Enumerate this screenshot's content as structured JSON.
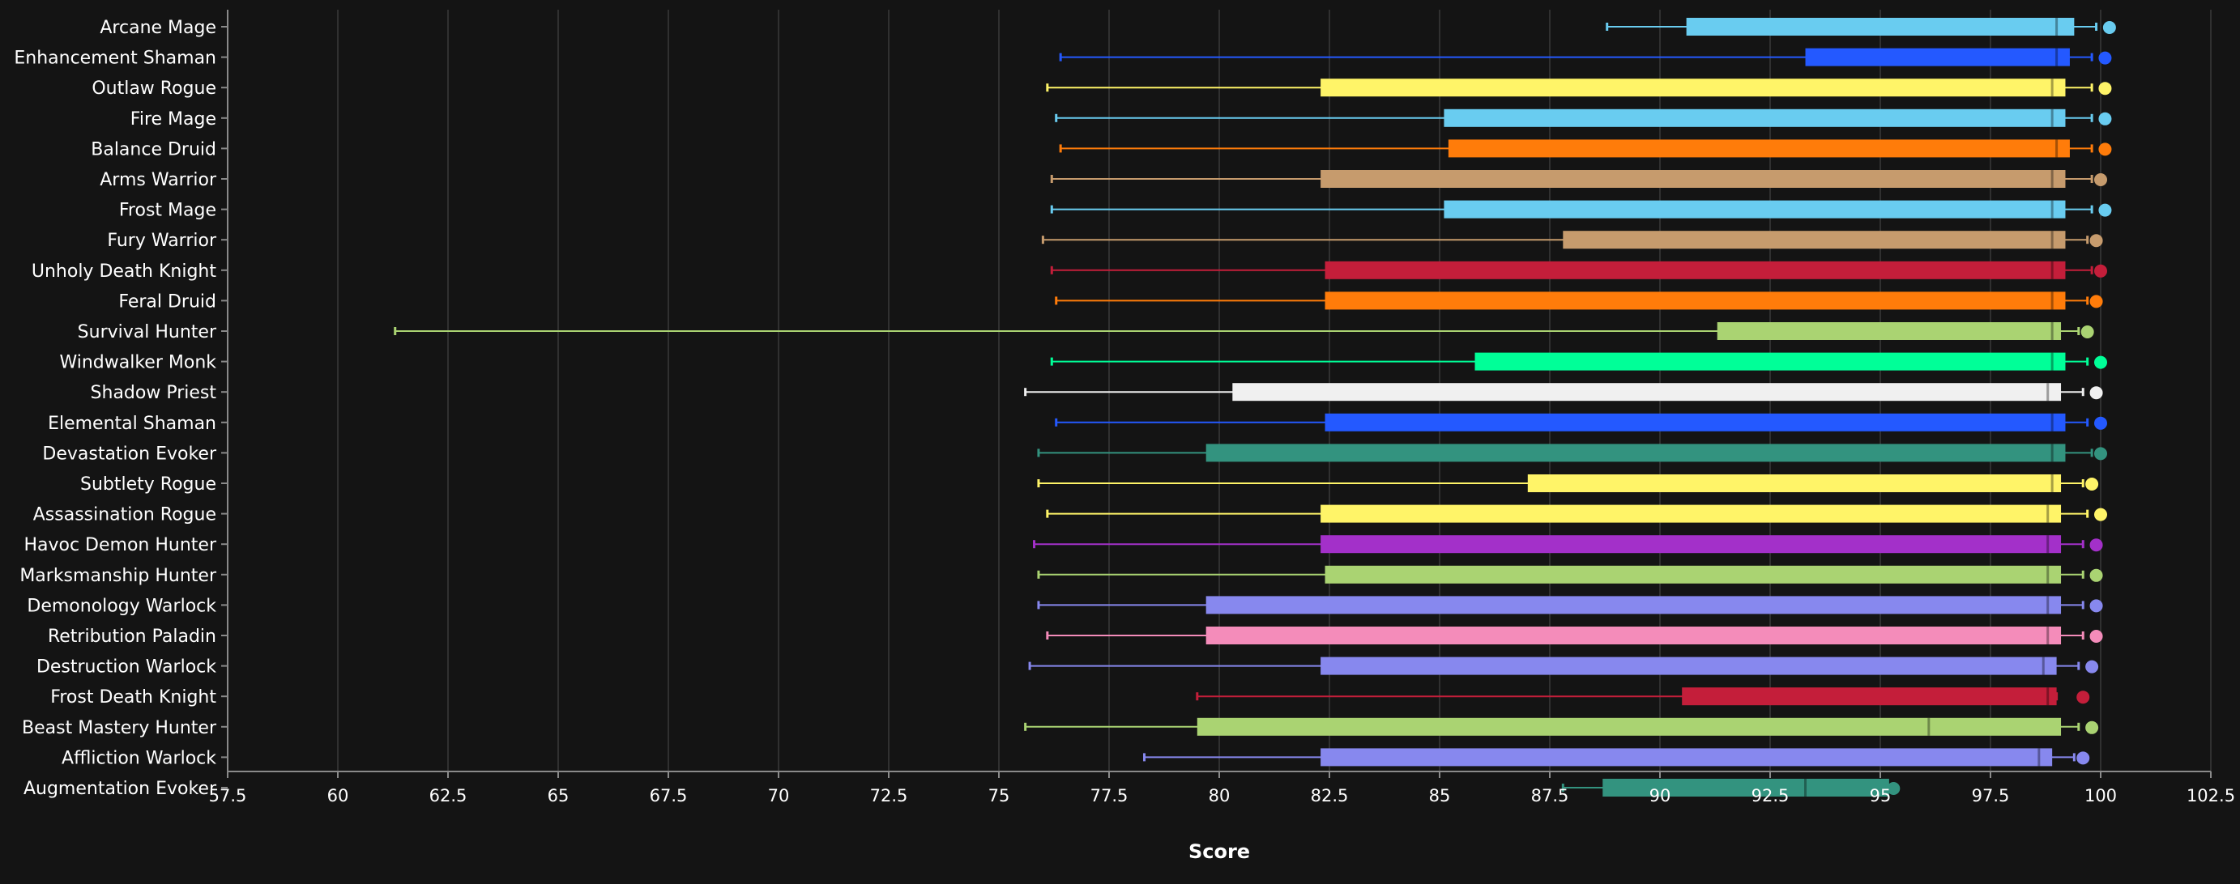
{
  "chart_data": {
    "type": "boxplot",
    "xlabel": "Score",
    "xlim": [
      57.5,
      102.5
    ],
    "xticks": [
      "57.5",
      "60",
      "62.5",
      "65",
      "67.5",
      "70",
      "72.5",
      "75",
      "77.5",
      "80",
      "82.5",
      "85",
      "87.5",
      "90",
      "92.5",
      "95",
      "97.5",
      "100",
      "102.5"
    ],
    "grid": true,
    "categories": [
      {
        "name": "Arcane Mage",
        "color": "#69CCF0",
        "min": 88.8,
        "q1": 90.6,
        "median": 99.0,
        "q3": 99.4,
        "max": 99.9,
        "outlier": 100.2
      },
      {
        "name": "Enhancement Shaman",
        "color": "#2459FF",
        "min": 76.4,
        "q1": 93.3,
        "median": 99.0,
        "q3": 99.3,
        "max": 99.8,
        "outlier": 100.1
      },
      {
        "name": "Outlaw Rogue",
        "color": "#FFF468",
        "min": 76.1,
        "q1": 82.3,
        "median": 98.9,
        "q3": 99.2,
        "max": 99.8,
        "outlier": 100.1
      },
      {
        "name": "Fire Mage",
        "color": "#69CCF0",
        "min": 76.3,
        "q1": 85.1,
        "median": 98.9,
        "q3": 99.2,
        "max": 99.8,
        "outlier": 100.1
      },
      {
        "name": "Balance Druid",
        "color": "#FF7C0A",
        "min": 76.4,
        "q1": 85.2,
        "median": 99.0,
        "q3": 99.3,
        "max": 99.8,
        "outlier": 100.1
      },
      {
        "name": "Arms Warrior",
        "color": "#C69B6D",
        "min": 76.2,
        "q1": 82.3,
        "median": 98.9,
        "q3": 99.2,
        "max": 99.8,
        "outlier": 100.0
      },
      {
        "name": "Frost Mage",
        "color": "#69CCF0",
        "min": 76.2,
        "q1": 85.1,
        "median": 98.9,
        "q3": 99.2,
        "max": 99.8,
        "outlier": 100.1
      },
      {
        "name": "Fury Warrior",
        "color": "#C69B6D",
        "min": 76.0,
        "q1": 87.8,
        "median": 98.9,
        "q3": 99.2,
        "max": 99.7,
        "outlier": 99.9
      },
      {
        "name": "Unholy Death Knight",
        "color": "#C41E3A",
        "min": 76.2,
        "q1": 82.4,
        "median": 98.9,
        "q3": 99.2,
        "max": 99.8,
        "outlier": 100.0
      },
      {
        "name": "Feral Druid",
        "color": "#FF7C0A",
        "min": 76.3,
        "q1": 82.4,
        "median": 98.9,
        "q3": 99.2,
        "max": 99.7,
        "outlier": 99.9
      },
      {
        "name": "Survival Hunter",
        "color": "#AAD372",
        "min": 61.3,
        "q1": 91.3,
        "median": 98.9,
        "q3": 99.1,
        "max": 99.5,
        "outlier": 99.7
      },
      {
        "name": "Windwalker Monk",
        "color": "#00FF98",
        "min": 76.2,
        "q1": 85.8,
        "median": 98.9,
        "q3": 99.2,
        "max": 99.7,
        "outlier": 100.0
      },
      {
        "name": "Shadow Priest",
        "color": "#F0F0F0",
        "min": 75.6,
        "q1": 80.3,
        "median": 98.8,
        "q3": 99.1,
        "max": 99.6,
        "outlier": 99.9
      },
      {
        "name": "Elemental Shaman",
        "color": "#2459FF",
        "min": 76.3,
        "q1": 82.4,
        "median": 98.9,
        "q3": 99.2,
        "max": 99.7,
        "outlier": 100.0
      },
      {
        "name": "Devastation Evoker",
        "color": "#33937F",
        "min": 75.9,
        "q1": 79.7,
        "median": 98.9,
        "q3": 99.2,
        "max": 99.8,
        "outlier": 100.0
      },
      {
        "name": "Subtlety Rogue",
        "color": "#FFF468",
        "min": 75.9,
        "q1": 87.0,
        "median": 98.9,
        "q3": 99.1,
        "max": 99.6,
        "outlier": 99.8
      },
      {
        "name": "Assassination Rogue",
        "color": "#FFF468",
        "min": 76.1,
        "q1": 82.3,
        "median": 98.8,
        "q3": 99.1,
        "max": 99.7,
        "outlier": 100.0
      },
      {
        "name": "Havoc Demon Hunter",
        "color": "#A330C9",
        "min": 75.8,
        "q1": 82.3,
        "median": 98.8,
        "q3": 99.1,
        "max": 99.6,
        "outlier": 99.9
      },
      {
        "name": "Marksmanship Hunter",
        "color": "#AAD372",
        "min": 75.9,
        "q1": 82.4,
        "median": 98.8,
        "q3": 99.1,
        "max": 99.6,
        "outlier": 99.9
      },
      {
        "name": "Demonology Warlock",
        "color": "#8788EE",
        "min": 75.9,
        "q1": 79.7,
        "median": 98.8,
        "q3": 99.1,
        "max": 99.6,
        "outlier": 99.9
      },
      {
        "name": "Retribution Paladin",
        "color": "#F48CBA",
        "min": 76.1,
        "q1": 79.7,
        "median": 98.8,
        "q3": 99.1,
        "max": 99.6,
        "outlier": 99.9
      },
      {
        "name": "Destruction Warlock",
        "color": "#8788EE",
        "min": 75.7,
        "q1": 82.3,
        "median": 98.7,
        "q3": 99.0,
        "max": 99.5,
        "outlier": 99.8
      },
      {
        "name": "Frost Death Knight",
        "color": "#C41E3A",
        "min": 79.5,
        "q1": 90.5,
        "median": 98.8,
        "q3": 99.0,
        "max": 99.0,
        "outlier": 99.6
      },
      {
        "name": "Beast Mastery Hunter",
        "color": "#AAD372",
        "min": 75.6,
        "q1": 79.5,
        "median": 96.1,
        "q3": 99.1,
        "max": 99.5,
        "outlier": 99.8
      },
      {
        "name": "Affliction Warlock",
        "color": "#8788EE",
        "min": 78.3,
        "q1": 82.3,
        "median": 98.6,
        "q3": 98.9,
        "max": 99.4,
        "outlier": 99.6
      },
      {
        "name": "Augmentation Evoker",
        "color": "#33937F",
        "min": 87.8,
        "q1": 88.7,
        "median": 93.3,
        "q3": 95.2,
        "max": 95.3,
        "outlier": 95.3
      }
    ]
  }
}
